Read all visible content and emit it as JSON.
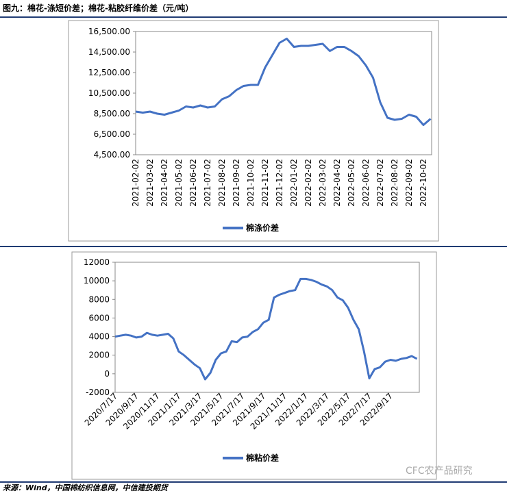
{
  "title": "图九：棉花-涤短价差；棉花-粘胶纤维价差（元/吨）",
  "source": "来源：Wind，中国棉纺织信息网，中信建投期货",
  "watermark": "CFC农产品研究",
  "chart_data": [
    {
      "type": "line",
      "categories": [
        "2021-02-02",
        null,
        "2021-03-02",
        null,
        "2021-04-02",
        null,
        "2021-05-02",
        null,
        "2021-06-02",
        null,
        "2021-07-02",
        null,
        "2021-08-02",
        null,
        "2021-09-02",
        null,
        "2021-10-02",
        null,
        "2021-11-02",
        null,
        "2021-12-02",
        null,
        "2022-01-02",
        null,
        "2022-02-02",
        null,
        "2022-03-02",
        null,
        "2022-04-02",
        null,
        "2022-05-02",
        null,
        "2022-06-02",
        null,
        "2022-07-02",
        null,
        "2022-08-02",
        null,
        "2022-09-02",
        null,
        "2022-10-02",
        null
      ],
      "series": [
        {
          "name": "棉涤价差",
          "color": "#4472c4",
          "values": [
            8700,
            8600,
            8700,
            8500,
            8400,
            8600,
            8800,
            9200,
            9100,
            9300,
            9100,
            9200,
            9900,
            10200,
            10800,
            11200,
            11300,
            11300,
            13000,
            14200,
            15400,
            15800,
            15000,
            15100,
            15100,
            15200,
            15300,
            14600,
            15000,
            15000,
            14600,
            14100,
            13200,
            12000,
            9600,
            8100,
            7900,
            8000,
            8400,
            8200,
            7400,
            8000
          ]
        }
      ],
      "ylim": [
        4500,
        16500
      ],
      "yticks": [
        {
          "value": 4500,
          "label": "4,500.00"
        },
        {
          "value": 6500,
          "label": "6,500.00"
        },
        {
          "value": 8500,
          "label": "8,500.00"
        },
        {
          "value": 10500,
          "label": "10,500.00"
        },
        {
          "value": 12500,
          "label": "12,500.00"
        },
        {
          "value": 14500,
          "label": "14,500.00"
        },
        {
          "value": 16500,
          "label": "16,500.00"
        }
      ],
      "legend": "bottom"
    },
    {
      "type": "line",
      "categories": [
        "2020/7/17",
        null,
        null,
        null,
        "2020/9/17",
        null,
        null,
        null,
        "2020/11/17",
        null,
        null,
        null,
        "2021/1/17",
        null,
        null,
        null,
        "2021/3/17",
        null,
        null,
        null,
        "2021/5/17",
        null,
        null,
        null,
        "2021/7/17",
        null,
        null,
        null,
        "2021/9/17",
        null,
        null,
        null,
        "2021/11/17",
        null,
        null,
        null,
        "2022/1/17",
        null,
        null,
        null,
        "2022/3/17",
        null,
        null,
        null,
        "2022/5/17",
        null,
        null,
        null,
        "2022/7/17",
        null,
        null,
        null,
        "2022/9/17",
        null,
        null,
        null,
        null,
        null
      ],
      "series": [
        {
          "name": "棉粘价差",
          "color": "#4472c4",
          "values": [
            4000,
            4100,
            4200,
            4100,
            3900,
            4000,
            4400,
            4200,
            4100,
            4200,
            4300,
            3800,
            2400,
            2000,
            1500,
            1000,
            600,
            -600,
            100,
            1500,
            2200,
            2400,
            3500,
            3400,
            3900,
            4000,
            4500,
            4800,
            5500,
            5800,
            8200,
            8500,
            8700,
            8900,
            9000,
            10200,
            10200,
            10100,
            9900,
            9600,
            9400,
            9000,
            8200,
            7900,
            7100,
            5800,
            4800,
            2400,
            -500,
            500,
            700,
            1300,
            1500,
            1400,
            1600,
            1700,
            1900,
            1600
          ]
        }
      ],
      "ylim": [
        -2000,
        12000
      ],
      "yticks": [
        -2000,
        0,
        2000,
        4000,
        6000,
        8000,
        10000,
        12000
      ],
      "legend": "bottom"
    }
  ]
}
